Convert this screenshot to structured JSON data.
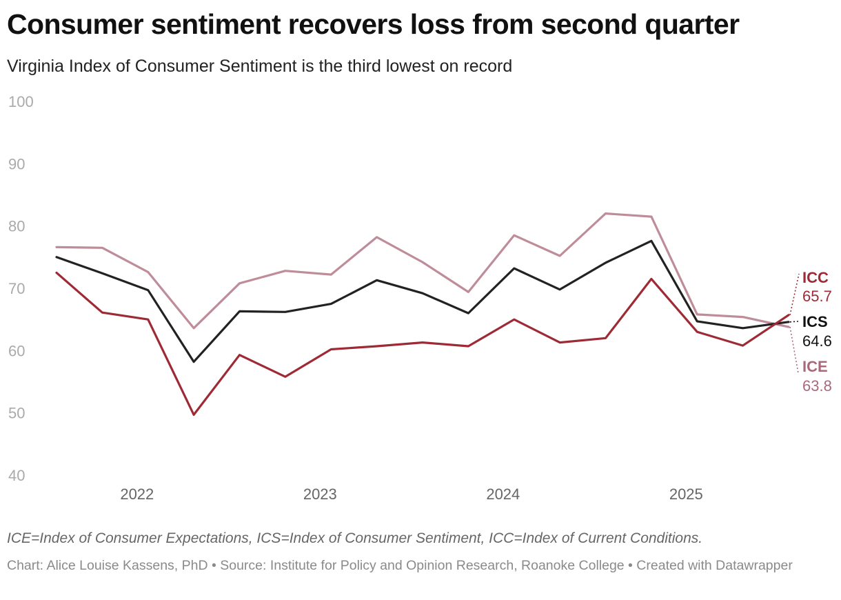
{
  "header": {
    "title": "Consumer sentiment recovers loss from second quarter",
    "subtitle": "Virginia Index of Consumer Sentiment is the third lowest on record"
  },
  "chart_data": {
    "type": "line",
    "title": "Consumer sentiment recovers loss from second quarter",
    "subtitle": "Virginia Index of Consumer Sentiment is the third lowest on record",
    "xlabel": "",
    "ylabel": "",
    "ylim": [
      40,
      100
    ],
    "yticks": [
      40,
      50,
      60,
      70,
      80,
      90,
      100
    ],
    "x_ticks": [
      {
        "label": "2022",
        "value": 2022.0
      },
      {
        "label": "2023",
        "value": 2023.0
      },
      {
        "label": "2024",
        "value": 2024.0
      },
      {
        "label": "2025",
        "value": 2025.0
      }
    ],
    "x": [
      2021.56,
      2021.81,
      2022.06,
      2022.31,
      2022.56,
      2022.81,
      2023.06,
      2023.31,
      2023.56,
      2023.81,
      2024.06,
      2024.31,
      2024.56,
      2024.81,
      2025.06,
      2025.31,
      2025.56
    ],
    "grid": false,
    "series": [
      {
        "name": "ICE",
        "color": "#bf8c99",
        "label_color": "#a9697a",
        "values": [
          76.6,
          76.5,
          72.6,
          63.6,
          70.8,
          72.8,
          72.2,
          78.2,
          74.2,
          69.4,
          78.5,
          75.2,
          82.0,
          81.5,
          65.8,
          65.4,
          63.8
        ]
      },
      {
        "name": "ICS",
        "color": "#222222",
        "label_color": "#111111",
        "values": [
          75.0,
          72.4,
          69.7,
          58.2,
          66.3,
          66.2,
          67.5,
          71.3,
          69.2,
          66.0,
          73.2,
          69.8,
          74.1,
          77.6,
          64.7,
          63.6,
          64.6
        ]
      },
      {
        "name": "ICC",
        "color": "#9e2a35",
        "label_color": "#9e2a35",
        "values": [
          72.5,
          66.1,
          65.0,
          49.7,
          59.3,
          55.8,
          60.2,
          60.7,
          61.3,
          60.7,
          65.0,
          61.3,
          62.0,
          71.5,
          63.0,
          60.8,
          65.7
        ]
      }
    ],
    "end_labels": [
      {
        "name": "ICC",
        "value_text": "65.7"
      },
      {
        "name": "ICS",
        "value_text": "64.6"
      },
      {
        "name": "ICE",
        "value_text": "63.8"
      }
    ],
    "notes": "ICE=Index of Consumer Expectations, ICS=Index of Consumer Sentiment, ICC=Index of Current Conditions.",
    "credit": "Chart: Alice Louise Kassens, PhD • Source: Institute for Policy and Opinion Research, Roanoke College • Created with Datawrapper"
  }
}
